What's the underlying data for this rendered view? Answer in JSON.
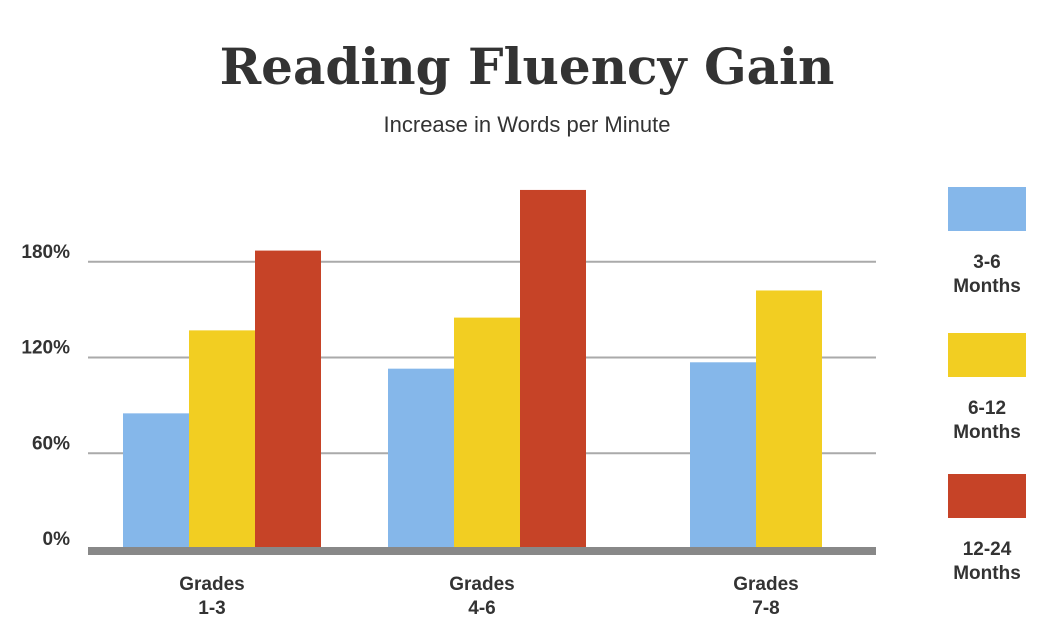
{
  "chart_data": {
    "type": "bar",
    "title": "Reading Fluency Gain",
    "subtitle": "Increase in Words per Minute",
    "categories": [
      [
        "Grades",
        "1-3"
      ],
      [
        "Grades",
        "4-6"
      ],
      [
        "Grades",
        "7-8"
      ]
    ],
    "series": [
      {
        "name": [
          "3-6",
          "Months"
        ],
        "color": "#85B7EA",
        "values": [
          85,
          113,
          117
        ]
      },
      {
        "name": [
          "6-12",
          "Months"
        ],
        "color": "#F2CE22",
        "values": [
          137,
          145,
          162
        ]
      },
      {
        "name": [
          "12-24",
          "Months"
        ],
        "color": "#C64327",
        "values": [
          187,
          225,
          null
        ]
      }
    ],
    "y_ticks": [
      {
        "value": 0,
        "label": "0%"
      },
      {
        "value": 60,
        "label": "60%"
      },
      {
        "value": 120,
        "label": "120%"
      },
      {
        "value": 180,
        "label": "180%"
      }
    ],
    "ylim": [
      0,
      240
    ],
    "grid": true,
    "legend_position": "right"
  }
}
